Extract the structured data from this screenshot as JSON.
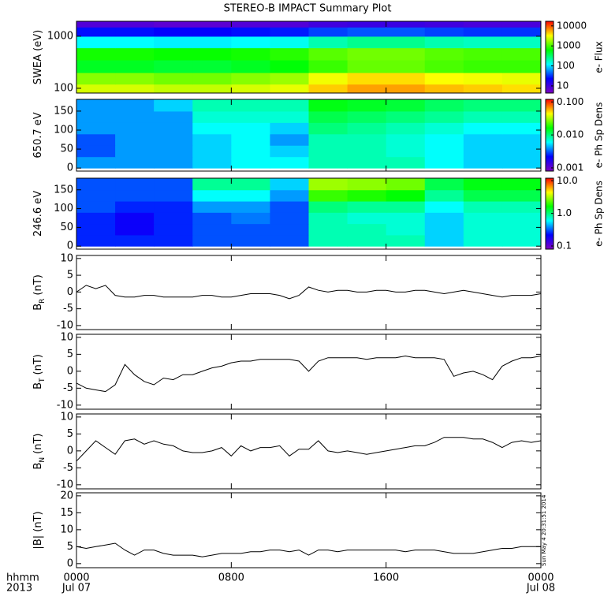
{
  "title": "STEREO-B IMPACT Summary Plot",
  "timestamp": "Sun May  4 20:31:51 2014",
  "x_axis": {
    "label": "hhmm",
    "year": "2013",
    "xlim": [
      0,
      24
    ],
    "xticks": [
      {
        "value": 0,
        "label": "0000",
        "date": "Jul 07"
      },
      {
        "value": 8,
        "label": "0800"
      },
      {
        "value": 16,
        "label": "1600"
      },
      {
        "value": 24,
        "label": "0000",
        "date": "Jul 08"
      }
    ]
  },
  "colormap": [
    "#8000c0",
    "#0000ff",
    "#00ffff",
    "#00ff00",
    "#ffff00",
    "#ff0000"
  ],
  "chart_data": [
    {
      "type": "heatmap",
      "ylabel": "SWEA (eV)",
      "ylog": true,
      "ylim": [
        81,
        1940
      ],
      "yticks": [
        100,
        1000
      ],
      "xbins": [
        0,
        2,
        4,
        6,
        8,
        10,
        12,
        14,
        16,
        18,
        20,
        22,
        24
      ],
      "ybins": [
        81,
        120,
        200,
        350,
        600,
        1000,
        1500,
        1940
      ],
      "values": [
        [
          2500,
          2500,
          2200,
          2200,
          2500,
          2800,
          4500,
          6000,
          6000,
          5000,
          4500,
          4000
        ],
        [
          1500,
          1500,
          1300,
          1300,
          1500,
          1700,
          3000,
          4000,
          4000,
          3200,
          3000,
          2800
        ],
        [
          500,
          500,
          450,
          450,
          500,
          600,
          900,
          1200,
          1200,
          1000,
          900,
          900
        ],
        [
          700,
          700,
          650,
          650,
          700,
          800,
          1100,
          1300,
          1300,
          1100,
          1000,
          1000
        ],
        [
          120,
          120,
          110,
          110,
          120,
          130,
          200,
          250,
          250,
          200,
          180,
          180
        ],
        [
          25,
          25,
          22,
          22,
          25,
          27,
          35,
          40,
          40,
          35,
          32,
          32
        ],
        [
          8,
          8,
          7,
          7,
          8,
          8,
          10,
          11,
          11,
          10,
          9,
          9
        ]
      ],
      "colorbar": {
        "label": "e- Flux",
        "clim": [
          4.4,
          17000
        ],
        "ticks": [
          10,
          100,
          1000,
          10000
        ]
      }
    },
    {
      "type": "heatmap",
      "ylabel": "650.7 eV",
      "ylog": false,
      "ylim": [
        -8,
        181
      ],
      "yticks": [
        0,
        50,
        100,
        150
      ],
      "xbins": [
        0,
        2,
        4,
        6,
        8,
        10,
        12,
        14,
        16,
        18,
        20,
        22,
        24
      ],
      "ybins": [
        0,
        30,
        60,
        90,
        120,
        150,
        180
      ],
      "values": [
        [
          0.004,
          0.004,
          0.004,
          0.005,
          0.006,
          0.006,
          0.008,
          0.008,
          0.008,
          0.006,
          0.005,
          0.005
        ],
        [
          0.003,
          0.004,
          0.004,
          0.005,
          0.006,
          0.005,
          0.008,
          0.008,
          0.007,
          0.006,
          0.005,
          0.005
        ],
        [
          0.003,
          0.004,
          0.004,
          0.005,
          0.006,
          0.004,
          0.008,
          0.008,
          0.007,
          0.006,
          0.005,
          0.005
        ],
        [
          0.004,
          0.004,
          0.004,
          0.006,
          0.006,
          0.005,
          0.01,
          0.009,
          0.008,
          0.007,
          0.006,
          0.006
        ],
        [
          0.004,
          0.004,
          0.004,
          0.007,
          0.007,
          0.007,
          0.012,
          0.011,
          0.01,
          0.009,
          0.008,
          0.008
        ],
        [
          0.004,
          0.004,
          0.005,
          0.008,
          0.008,
          0.008,
          0.015,
          0.014,
          0.013,
          0.011,
          0.01,
          0.01
        ]
      ],
      "colorbar": {
        "label": "e- Ph Sp Dens",
        "clim": [
          0.0008,
          0.12
        ],
        "ticks": [
          {
            "value": 0.001,
            "label": "0.001"
          },
          {
            "value": 0.01,
            "label": "0.010"
          },
          {
            "value": 0.1,
            "label": "0.100"
          }
        ]
      }
    },
    {
      "type": "heatmap",
      "ylabel": "246.6 eV",
      "ylog": false,
      "ylim": [
        -8,
        181
      ],
      "yticks": [
        0,
        50,
        100,
        150
      ],
      "xbins": [
        0,
        2,
        4,
        6,
        8,
        10,
        12,
        14,
        16,
        18,
        20,
        22,
        24
      ],
      "ybins": [
        0,
        30,
        60,
        90,
        120,
        150,
        180
      ],
      "values": [
        [
          0.25,
          0.25,
          0.25,
          0.3,
          0.3,
          0.3,
          0.8,
          0.8,
          0.8,
          0.5,
          0.7,
          0.7
        ],
        [
          0.25,
          0.2,
          0.25,
          0.3,
          0.3,
          0.3,
          0.8,
          0.8,
          0.7,
          0.5,
          0.7,
          0.7
        ],
        [
          0.25,
          0.2,
          0.25,
          0.3,
          0.35,
          0.3,
          0.8,
          0.7,
          0.7,
          0.5,
          0.7,
          0.7
        ],
        [
          0.3,
          0.25,
          0.25,
          0.4,
          0.4,
          0.3,
          1.0,
          0.9,
          0.9,
          0.6,
          0.8,
          0.8
        ],
        [
          0.3,
          0.3,
          0.3,
          0.6,
          0.6,
          0.4,
          2.0,
          1.8,
          1.6,
          0.9,
          1.2,
          1.2
        ],
        [
          0.3,
          0.3,
          0.3,
          0.9,
          0.9,
          0.5,
          3.0,
          2.8,
          2.5,
          1.2,
          1.5,
          1.5
        ]
      ],
      "colorbar": {
        "label": "e- Ph Sp Dens",
        "clim": [
          0.08,
          12
        ],
        "ticks": [
          {
            "value": 0.1,
            "label": "0.1"
          },
          {
            "value": 1,
            "label": "1.0"
          },
          {
            "value": 10,
            "label": "10.0"
          }
        ]
      }
    },
    {
      "type": "line",
      "ylabel": "B",
      "ylabel_subscript": "R",
      "ylabel_units": "(nT)",
      "color": "#000000",
      "ylim": [
        -11.2,
        10.9
      ],
      "yticks": [
        -10,
        -5,
        0,
        5,
        10
      ],
      "x": [
        0,
        0.5,
        1,
        1.5,
        2,
        2.5,
        3,
        3.5,
        4,
        4.5,
        5,
        5.5,
        6,
        6.5,
        7,
        7.5,
        8,
        8.5,
        9,
        9.5,
        10,
        10.5,
        11,
        11.5,
        12,
        12.5,
        13,
        13.5,
        14,
        14.5,
        15,
        15.5,
        16,
        16.5,
        17,
        17.5,
        18,
        18.5,
        19,
        19.5,
        20,
        20.5,
        21,
        21.5,
        22,
        22.5,
        23,
        23.5,
        24
      ],
      "values": [
        0,
        2,
        1,
        2,
        -1,
        -1.5,
        -1.5,
        -1,
        -1,
        -1.5,
        -1.5,
        -1.5,
        -1.5,
        -1,
        -1,
        -1.5,
        -1.5,
        -1,
        -0.5,
        -0.5,
        -0.5,
        -1,
        -2,
        -1,
        1.5,
        0.5,
        0,
        0.5,
        0.5,
        0,
        0,
        0.5,
        0.5,
        0,
        0,
        0.5,
        0.5,
        0,
        -0.5,
        0,
        0.5,
        0,
        -0.5,
        -1,
        -1.5,
        -1,
        -1,
        -1,
        -0.5
      ]
    },
    {
      "type": "line",
      "ylabel": "B",
      "ylabel_subscript": "T",
      "ylabel_units": "(nT)",
      "color": "#000000",
      "ylim": [
        -11.2,
        10.9
      ],
      "yticks": [
        -10,
        -5,
        0,
        5,
        10
      ],
      "x": [
        0,
        0.5,
        1,
        1.5,
        2,
        2.5,
        3,
        3.5,
        4,
        4.5,
        5,
        5.5,
        6,
        6.5,
        7,
        7.5,
        8,
        8.5,
        9,
        9.5,
        10,
        10.5,
        11,
        11.5,
        12,
        12.5,
        13,
        13.5,
        14,
        14.5,
        15,
        15.5,
        16,
        16.5,
        17,
        17.5,
        18,
        18.5,
        19,
        19.5,
        20,
        20.5,
        21,
        21.5,
        22,
        22.5,
        23,
        23.5,
        24
      ],
      "values": [
        -3.5,
        -5,
        -5.5,
        -6,
        -4,
        2,
        -1,
        -3,
        -4,
        -2,
        -2.5,
        -1,
        -1,
        0,
        1,
        1.5,
        2.5,
        3,
        3,
        3.5,
        3.5,
        3.5,
        3.5,
        3,
        0,
        3,
        4,
        4,
        4,
        4,
        3.5,
        4,
        4,
        4,
        4.5,
        4,
        4,
        4,
        3.5,
        -1.5,
        -0.5,
        0,
        -1,
        -2.5,
        1.5,
        3,
        4,
        4,
        4.5
      ]
    },
    {
      "type": "line",
      "ylabel": "B",
      "ylabel_subscript": "N",
      "ylabel_units": "(nT)",
      "color": "#000000",
      "ylim": [
        -11.2,
        10.9
      ],
      "yticks": [
        -10,
        -5,
        0,
        5,
        10
      ],
      "x": [
        0,
        0.5,
        1,
        1.5,
        2,
        2.5,
        3,
        3.5,
        4,
        4.5,
        5,
        5.5,
        6,
        6.5,
        7,
        7.5,
        8,
        8.5,
        9,
        9.5,
        10,
        10.5,
        11,
        11.5,
        12,
        12.5,
        13,
        13.5,
        14,
        14.5,
        15,
        15.5,
        16,
        16.5,
        17,
        17.5,
        18,
        18.5,
        19,
        19.5,
        20,
        20.5,
        21,
        21.5,
        22,
        22.5,
        23,
        23.5,
        24
      ],
      "values": [
        -3,
        0,
        3,
        1,
        -1,
        3,
        3.5,
        2,
        3,
        2,
        1.5,
        0,
        -0.5,
        -0.5,
        0,
        1,
        -1.5,
        1.5,
        0,
        1,
        1,
        1.5,
        -1.5,
        0.5,
        0.5,
        3,
        0,
        -0.5,
        0,
        -0.5,
        -1,
        -0.5,
        0,
        0.5,
        1,
        1.5,
        1.5,
        2.5,
        4,
        4,
        4,
        3.5,
        3.5,
        2.5,
        1,
        2.5,
        3,
        2.5,
        3
      ]
    },
    {
      "type": "line",
      "ylabel": "|B| (nT)",
      "color": "#000000",
      "ylim": [
        -1.2,
        20.9
      ],
      "yticks": [
        0,
        5,
        10,
        15,
        20
      ],
      "x": [
        0,
        0.5,
        1,
        1.5,
        2,
        2.5,
        3,
        3.5,
        4,
        4.5,
        5,
        5.5,
        6,
        6.5,
        7,
        7.5,
        8,
        8.5,
        9,
        9.5,
        10,
        10.5,
        11,
        11.5,
        12,
        12.5,
        13,
        13.5,
        14,
        14.5,
        15,
        15.5,
        16,
        16.5,
        17,
        17.5,
        18,
        18.5,
        19,
        19.5,
        20,
        20.5,
        21,
        21.5,
        22,
        22.5,
        23,
        23.5,
        24
      ],
      "values": [
        5,
        4.5,
        5,
        5.5,
        6,
        4,
        2.5,
        4,
        4,
        3,
        2.5,
        2.5,
        2.5,
        2,
        2.5,
        3,
        3,
        3,
        3.5,
        3.5,
        4,
        4,
        3.5,
        4,
        2.5,
        4,
        4,
        3.5,
        4,
        4,
        4,
        4,
        4,
        4,
        3.5,
        4,
        4,
        4,
        3.5,
        3,
        3,
        3,
        3.5,
        4,
        4.5,
        4.5,
        5,
        5,
        5
      ]
    }
  ]
}
